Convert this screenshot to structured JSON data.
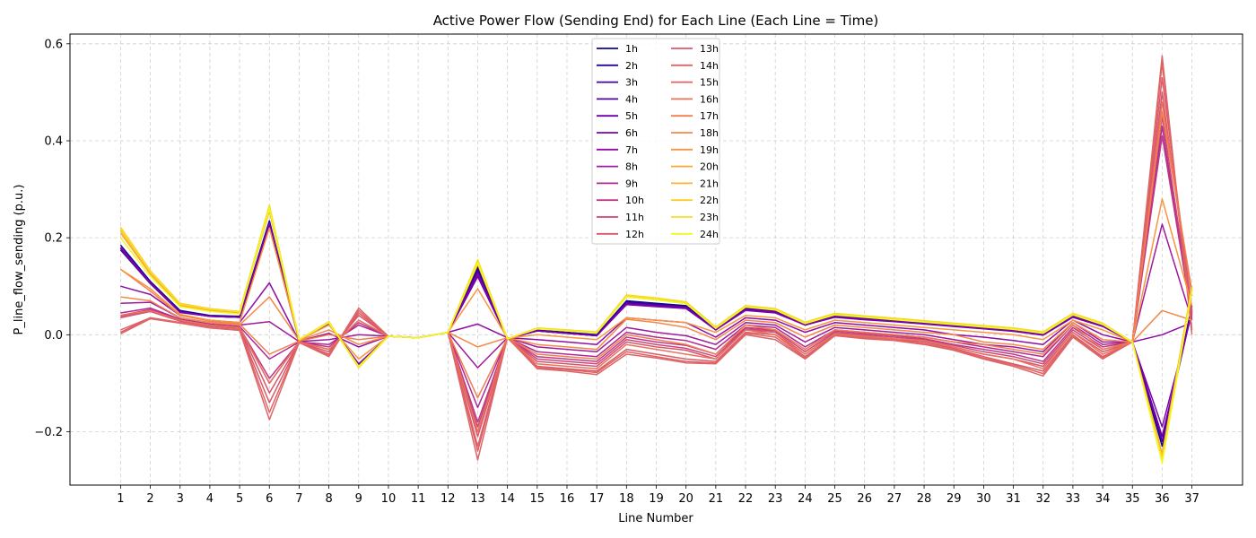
{
  "chart_data": {
    "type": "line",
    "title": "Active Power Flow (Sending End) for Each Line (Each Line = Time)",
    "xlabel": "Line Number",
    "ylabel": "P_line_flow_sending (p.u.)",
    "xlim": [
      -0.7,
      38.7
    ],
    "ylim": [
      -0.31,
      0.62
    ],
    "grid": true,
    "legend_position": "upper-center",
    "legend_columns": 2,
    "x": [
      1,
      2,
      3,
      4,
      5,
      6,
      7,
      8,
      9,
      10,
      11,
      12,
      13,
      14,
      15,
      16,
      17,
      18,
      19,
      20,
      21,
      22,
      23,
      24,
      25,
      26,
      27,
      28,
      29,
      30,
      31,
      32,
      33,
      34,
      35,
      36,
      37
    ],
    "y_ticks": [
      -0.2,
      0.0,
      0.2,
      0.4,
      0.6
    ],
    "y_tick_labels": [
      "−0.2",
      "0.0",
      "0.2",
      "0.4",
      "0.6"
    ],
    "series": [
      {
        "name": "1h",
        "color": "#0d0887",
        "values": [
          0.185,
          0.11,
          0.05,
          0.04,
          0.038,
          0.235,
          -0.01,
          0.025,
          -0.065,
          -0.003,
          -0.006,
          0.005,
          0.14,
          -0.008,
          0.01,
          0.005,
          0.0,
          0.07,
          0.065,
          0.06,
          0.012,
          0.055,
          0.05,
          0.022,
          0.04,
          0.035,
          0.03,
          0.025,
          0.02,
          0.015,
          0.01,
          0.002,
          0.04,
          0.02,
          -0.015,
          -0.23,
          0.06
        ]
      },
      {
        "name": "2h",
        "color": "#2a0593",
        "values": [
          0.18,
          0.108,
          0.048,
          0.039,
          0.037,
          0.228,
          -0.011,
          0.024,
          -0.064,
          -0.003,
          -0.006,
          0.005,
          0.135,
          -0.008,
          0.009,
          0.004,
          -0.001,
          0.068,
          0.063,
          0.058,
          0.011,
          0.054,
          0.049,
          0.021,
          0.039,
          0.034,
          0.029,
          0.024,
          0.019,
          0.014,
          0.009,
          0.001,
          0.039,
          0.019,
          -0.015,
          -0.22,
          0.055
        ]
      },
      {
        "name": "3h",
        "color": "#41049d",
        "values": [
          0.175,
          0.105,
          0.046,
          0.038,
          0.036,
          0.222,
          -0.012,
          0.023,
          -0.063,
          -0.003,
          -0.006,
          0.005,
          0.13,
          -0.008,
          0.008,
          0.003,
          -0.002,
          0.066,
          0.061,
          0.056,
          0.01,
          0.053,
          0.048,
          0.02,
          0.038,
          0.033,
          0.028,
          0.023,
          0.018,
          0.013,
          0.008,
          0.0,
          0.038,
          0.018,
          -0.015,
          -0.21,
          0.05
        ]
      },
      {
        "name": "4h",
        "color": "#5601a4",
        "values": [
          0.18,
          0.107,
          0.047,
          0.038,
          0.036,
          0.225,
          -0.011,
          0.024,
          -0.063,
          -0.003,
          -0.006,
          0.005,
          0.13,
          -0.008,
          0.008,
          0.003,
          -0.002,
          0.066,
          0.061,
          0.057,
          0.01,
          0.053,
          0.048,
          0.02,
          0.038,
          0.033,
          0.028,
          0.023,
          0.018,
          0.013,
          0.008,
          0.0,
          0.038,
          0.018,
          -0.015,
          -0.22,
          0.05
        ]
      },
      {
        "name": "5h",
        "color": "#6a00a8",
        "values": [
          0.178,
          0.106,
          0.047,
          0.038,
          0.036,
          0.224,
          -0.011,
          0.024,
          -0.062,
          -0.003,
          -0.006,
          0.005,
          0.12,
          -0.008,
          0.008,
          0.003,
          -0.002,
          0.064,
          0.06,
          0.056,
          0.01,
          0.052,
          0.047,
          0.02,
          0.037,
          0.032,
          0.028,
          0.023,
          0.018,
          0.013,
          0.008,
          0.0,
          0.037,
          0.018,
          -0.015,
          -0.21,
          0.048
        ]
      },
      {
        "name": "6h",
        "color": "#7e03a8",
        "values": [
          0.18,
          0.107,
          0.047,
          0.038,
          0.036,
          0.23,
          -0.011,
          0.024,
          -0.06,
          -0.003,
          -0.006,
          0.005,
          0.125,
          -0.008,
          0.008,
          0.003,
          -0.002,
          0.062,
          0.058,
          0.054,
          0.01,
          0.05,
          0.045,
          0.02,
          0.036,
          0.031,
          0.027,
          0.022,
          0.017,
          0.012,
          0.007,
          -0.001,
          0.036,
          0.017,
          -0.015,
          -0.19,
          0.045
        ]
      },
      {
        "name": "7h",
        "color": "#8f0da4",
        "values": [
          0.1,
          0.083,
          0.04,
          0.03,
          0.025,
          0.107,
          -0.013,
          0.003,
          -0.025,
          -0.003,
          -0.006,
          0.005,
          0.022,
          -0.006,
          -0.01,
          -0.015,
          -0.02,
          0.035,
          0.03,
          0.025,
          -0.005,
          0.035,
          0.03,
          0.005,
          0.025,
          0.02,
          0.015,
          0.01,
          0.0,
          -0.005,
          -0.012,
          -0.02,
          0.03,
          0.0,
          -0.015,
          0.0,
          0.025
        ]
      },
      {
        "name": "8h",
        "color": "#a01a9c",
        "values": [
          0.065,
          0.067,
          0.035,
          0.025,
          0.02,
          0.027,
          -0.014,
          -0.01,
          0.0,
          -0.003,
          -0.006,
          0.005,
          -0.068,
          -0.006,
          -0.025,
          -0.03,
          -0.035,
          0.015,
          0.005,
          -0.002,
          -0.02,
          0.025,
          0.02,
          -0.015,
          0.015,
          0.01,
          0.005,
          0.0,
          -0.01,
          -0.02,
          -0.025,
          -0.035,
          0.025,
          -0.015,
          -0.015,
          0.228,
          0.03
        ]
      },
      {
        "name": "9h",
        "color": "#b02991",
        "values": [
          0.045,
          0.055,
          0.032,
          0.022,
          0.017,
          -0.05,
          -0.015,
          -0.02,
          0.02,
          -0.003,
          -0.006,
          0.005,
          -0.15,
          -0.006,
          -0.035,
          -0.04,
          -0.045,
          0.005,
          -0.005,
          -0.012,
          -0.03,
          0.02,
          0.015,
          -0.025,
          0.01,
          0.005,
          0.0,
          -0.005,
          -0.015,
          -0.025,
          -0.035,
          -0.045,
          0.02,
          -0.02,
          -0.015,
          0.43,
          0.03
        ]
      },
      {
        "name": "10h",
        "color": "#be3885",
        "values": [
          0.04,
          0.052,
          0.03,
          0.02,
          0.015,
          -0.09,
          -0.015,
          -0.025,
          0.025,
          -0.003,
          -0.006,
          0.005,
          -0.18,
          -0.006,
          -0.045,
          -0.05,
          -0.055,
          -0.005,
          -0.015,
          -0.022,
          -0.04,
          0.015,
          0.01,
          -0.03,
          0.008,
          0.003,
          -0.002,
          -0.008,
          -0.02,
          -0.03,
          -0.04,
          -0.055,
          0.015,
          -0.025,
          -0.015,
          0.41,
          0.035
        ]
      },
      {
        "name": "11h",
        "color": "#cb4679",
        "values": [
          0.038,
          0.05,
          0.029,
          0.019,
          0.014,
          -0.1,
          -0.015,
          -0.03,
          0.03,
          -0.003,
          -0.006,
          0.005,
          -0.19,
          -0.006,
          -0.05,
          -0.055,
          -0.06,
          -0.01,
          -0.02,
          -0.028,
          -0.045,
          0.012,
          0.008,
          -0.035,
          0.005,
          0.0,
          -0.005,
          -0.01,
          -0.022,
          -0.035,
          -0.045,
          -0.06,
          0.01,
          -0.03,
          -0.015,
          0.45,
          0.04
        ]
      },
      {
        "name": "12h",
        "color": "#d6556d",
        "values": [
          0.035,
          0.048,
          0.028,
          0.018,
          0.013,
          -0.12,
          -0.016,
          -0.035,
          0.04,
          -0.003,
          -0.006,
          0.005,
          -0.21,
          -0.006,
          -0.055,
          -0.06,
          -0.065,
          -0.015,
          -0.025,
          -0.032,
          -0.05,
          0.01,
          0.005,
          -0.04,
          0.003,
          -0.002,
          -0.008,
          -0.012,
          -0.025,
          -0.04,
          -0.05,
          -0.065,
          0.005,
          -0.035,
          -0.015,
          0.5,
          0.045
        ]
      },
      {
        "name": "13h",
        "color": "#d85a6b",
        "values": [
          0.005,
          0.035,
          0.025,
          0.015,
          0.01,
          -0.14,
          -0.016,
          -0.04,
          0.045,
          -0.003,
          -0.006,
          0.005,
          -0.24,
          -0.006,
          -0.065,
          -0.07,
          -0.075,
          -0.03,
          -0.04,
          -0.05,
          -0.055,
          0.005,
          0.0,
          -0.045,
          0.0,
          -0.005,
          -0.01,
          -0.015,
          -0.028,
          -0.045,
          -0.06,
          -0.075,
          0.0,
          -0.045,
          -0.015,
          0.53,
          0.05
        ]
      },
      {
        "name": "14h",
        "color": "#db6567",
        "values": [
          0.002,
          0.033,
          0.024,
          0.014,
          0.009,
          -0.175,
          -0.016,
          -0.045,
          0.055,
          -0.003,
          -0.006,
          0.005,
          -0.258,
          -0.006,
          -0.07,
          -0.075,
          -0.082,
          -0.04,
          -0.048,
          -0.058,
          -0.06,
          0.0,
          -0.01,
          -0.05,
          -0.002,
          -0.008,
          -0.012,
          -0.02,
          -0.032,
          -0.05,
          -0.065,
          -0.085,
          -0.005,
          -0.05,
          -0.015,
          0.575,
          0.0
        ]
      },
      {
        "name": "15h",
        "color": "#e16462",
        "values": [
          0.01,
          0.035,
          0.025,
          0.015,
          0.01,
          -0.16,
          -0.016,
          -0.042,
          0.05,
          -0.003,
          -0.006,
          0.005,
          -0.23,
          -0.006,
          -0.068,
          -0.072,
          -0.078,
          -0.035,
          -0.045,
          -0.055,
          -0.058,
          0.003,
          -0.005,
          -0.048,
          -0.001,
          -0.006,
          -0.011,
          -0.018,
          -0.03,
          -0.048,
          -0.062,
          -0.08,
          -0.003,
          -0.048,
          -0.015,
          0.56,
          0.01
        ]
      },
      {
        "name": "16h",
        "color": "#ea715b",
        "values": [
          0.04,
          0.05,
          0.03,
          0.02,
          0.015,
          -0.1,
          -0.015,
          -0.03,
          0.03,
          -0.003,
          -0.006,
          0.005,
          -0.2,
          -0.006,
          -0.06,
          -0.065,
          -0.07,
          -0.02,
          -0.03,
          -0.04,
          -0.05,
          0.01,
          0.0,
          -0.04,
          0.002,
          -0.003,
          -0.008,
          -0.012,
          -0.025,
          -0.04,
          -0.05,
          -0.07,
          0.005,
          -0.04,
          -0.015,
          0.48,
          0.08
        ]
      },
      {
        "name": "17h",
        "color": "#f07f4f",
        "values": [
          0.135,
          0.09,
          0.04,
          0.028,
          0.022,
          -0.04,
          -0.013,
          0.0,
          -0.01,
          -0.003,
          -0.006,
          0.005,
          -0.13,
          -0.006,
          -0.04,
          -0.045,
          -0.05,
          0.0,
          -0.01,
          -0.02,
          -0.04,
          0.02,
          0.01,
          -0.03,
          0.01,
          0.005,
          0.0,
          -0.005,
          -0.015,
          -0.02,
          -0.03,
          -0.04,
          0.02,
          -0.03,
          -0.015,
          0.46,
          0.09
        ]
      },
      {
        "name": "18h",
        "color": "#f48849",
        "values": [
          0.078,
          0.07,
          0.035,
          0.025,
          0.02,
          0.078,
          -0.012,
          0.01,
          -0.02,
          -0.003,
          -0.006,
          0.005,
          -0.025,
          -0.006,
          -0.02,
          -0.025,
          -0.03,
          0.032,
          0.025,
          0.015,
          -0.01,
          0.03,
          0.025,
          -0.005,
          0.02,
          0.015,
          0.01,
          0.005,
          0.0,
          -0.015,
          -0.02,
          -0.03,
          0.025,
          -0.01,
          -0.015,
          0.05,
          0.03
        ]
      },
      {
        "name": "19h",
        "color": "#f89540",
        "values": [
          0.135,
          0.095,
          0.042,
          0.03,
          0.025,
          0.22,
          -0.011,
          0.02,
          -0.05,
          -0.003,
          -0.006,
          0.005,
          0.095,
          -0.007,
          0.0,
          -0.005,
          -0.01,
          0.035,
          0.03,
          0.025,
          0.005,
          0.04,
          0.035,
          0.01,
          0.03,
          0.025,
          0.02,
          0.015,
          0.01,
          0.005,
          0.0,
          -0.01,
          0.03,
          0.01,
          -0.015,
          0.28,
          0.06
        ]
      },
      {
        "name": "20h",
        "color": "#fca636",
        "values": [
          0.21,
          0.125,
          0.06,
          0.05,
          0.045,
          0.255,
          -0.01,
          0.025,
          -0.065,
          -0.003,
          -0.006,
          0.005,
          0.145,
          -0.008,
          0.012,
          0.008,
          0.004,
          0.078,
          0.072,
          0.065,
          0.014,
          0.058,
          0.052,
          0.024,
          0.042,
          0.037,
          0.032,
          0.027,
          0.022,
          0.017,
          0.012,
          0.004,
          0.042,
          0.022,
          -0.015,
          -0.245,
          0.095
        ]
      },
      {
        "name": "21h",
        "color": "#fdb32f",
        "values": [
          0.215,
          0.128,
          0.062,
          0.052,
          0.046,
          0.26,
          -0.01,
          0.026,
          -0.066,
          -0.003,
          -0.006,
          0.005,
          0.148,
          -0.008,
          0.013,
          0.009,
          0.005,
          0.08,
          0.074,
          0.066,
          0.015,
          0.059,
          0.053,
          0.025,
          0.043,
          0.038,
          0.033,
          0.028,
          0.023,
          0.018,
          0.013,
          0.005,
          0.043,
          0.023,
          -0.015,
          -0.25,
          0.1
        ]
      },
      {
        "name": "22h",
        "color": "#fcce25",
        "values": [
          0.222,
          0.132,
          0.065,
          0.054,
          0.048,
          0.265,
          -0.01,
          0.027,
          -0.068,
          -0.003,
          -0.006,
          0.005,
          0.152,
          -0.008,
          0.014,
          0.01,
          0.006,
          0.082,
          0.076,
          0.068,
          0.016,
          0.06,
          0.054,
          0.026,
          0.044,
          0.039,
          0.034,
          0.029,
          0.024,
          0.019,
          0.014,
          0.006,
          0.044,
          0.024,
          -0.015,
          -0.255,
          0.098
        ]
      },
      {
        "name": "23h",
        "color": "#f3e026",
        "values": [
          0.218,
          0.13,
          0.063,
          0.053,
          0.047,
          0.268,
          -0.01,
          0.026,
          -0.067,
          -0.003,
          -0.006,
          0.005,
          0.155,
          -0.008,
          0.013,
          0.009,
          0.005,
          0.081,
          0.075,
          0.067,
          0.015,
          0.059,
          0.053,
          0.025,
          0.043,
          0.038,
          0.033,
          0.028,
          0.023,
          0.018,
          0.013,
          0.005,
          0.043,
          0.023,
          -0.015,
          -0.26,
          0.095
        ]
      },
      {
        "name": "24h",
        "color": "#f0f921",
        "values": [
          0.2,
          0.12,
          0.058,
          0.048,
          0.043,
          0.26,
          -0.01,
          0.025,
          -0.065,
          -0.003,
          -0.006,
          0.005,
          0.148,
          -0.008,
          0.012,
          0.008,
          0.004,
          0.078,
          0.072,
          0.064,
          0.013,
          0.057,
          0.051,
          0.023,
          0.041,
          0.036,
          0.031,
          0.026,
          0.021,
          0.016,
          0.011,
          0.003,
          0.041,
          0.021,
          -0.015,
          -0.265,
          0.09
        ]
      }
    ]
  }
}
